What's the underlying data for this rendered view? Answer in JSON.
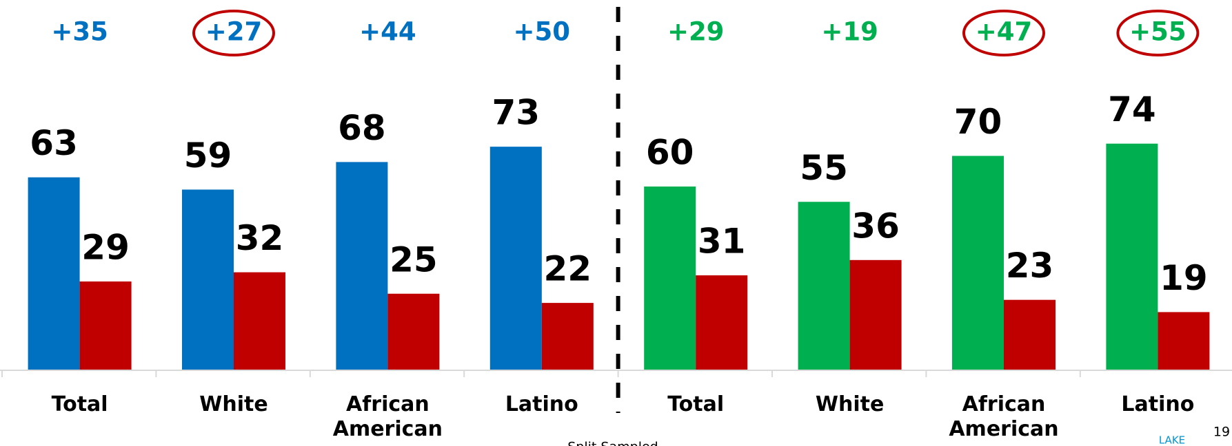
{
  "chart_data": {
    "type": "bar",
    "categories": [
      "Total",
      "White",
      "African American",
      "Latino",
      "Total",
      "White",
      "African American",
      "Latino"
    ],
    "series": [
      {
        "colors": [
          "#0070c0",
          "#0070c0",
          "#0070c0",
          "#0070c0",
          "#00b050",
          "#00b050",
          "#00b050",
          "#00b050"
        ],
        "values": [
          63,
          59,
          68,
          73,
          60,
          55,
          70,
          74
        ]
      },
      {
        "color": "#c00000",
        "values": [
          29,
          32,
          25,
          22,
          31,
          36,
          23,
          19
        ]
      }
    ],
    "annotations": [
      "+35",
      "+27",
      "+44",
      "+50",
      "+29",
      "+19",
      "+47",
      "+55"
    ],
    "circled": [
      false,
      true,
      false,
      false,
      false,
      false,
      true,
      true
    ],
    "ylim": [
      0,
      100
    ],
    "divider_after": 4,
    "footnote": "Split Sampled",
    "logo_text": "LAKE",
    "page_number": "19"
  }
}
